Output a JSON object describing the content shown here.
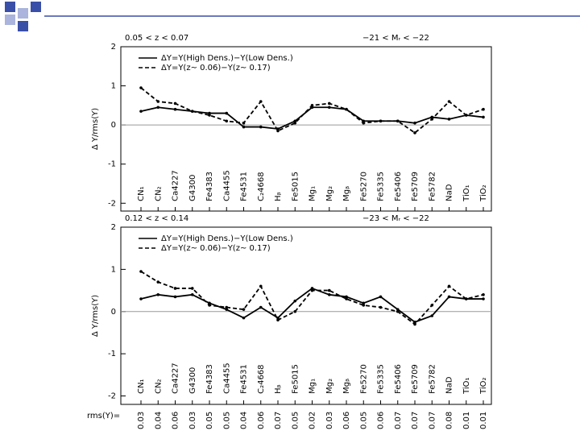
{
  "chart_data": [
    {
      "type": "line",
      "title_left": "0.05 < z < 0.07",
      "title_right": "−21 < Mᵣ < −22",
      "y_label": "Δ Y/rms(Y)",
      "categories": [
        "CN₁",
        "CN₂",
        "Ca4227",
        "G4300",
        "Fe4383",
        "Ca4455",
        "Fe4531",
        "C₂4668",
        "Hᵦ",
        "Fe5015",
        "Mg₁",
        "Mg₂",
        "Mgᵦ",
        "Fe5270",
        "Fe5335",
        "Fe5406",
        "Fe5709",
        "Fe5782",
        "NaD",
        "TiO₁",
        "TiO₂"
      ],
      "series": [
        {
          "name": "ΔY=Y(High Dens.)−Y(Low Dens.)",
          "color": "#000000",
          "dash": "solid",
          "values": [
            0.35,
            0.45,
            0.4,
            0.35,
            0.3,
            0.3,
            -0.05,
            -0.05,
            -0.1,
            0.1,
            0.45,
            0.45,
            0.4,
            0.1,
            0.1,
            0.1,
            0.05,
            0.2,
            0.15,
            0.25,
            0.2
          ]
        },
        {
          "name": "ΔY=Y(z~ 0.06)−Y(z~ 0.17)",
          "color": "#000000",
          "dash": "dashed",
          "values": [
            0.95,
            0.6,
            0.55,
            0.35,
            0.25,
            0.1,
            0.05,
            0.6,
            -0.15,
            0.05,
            0.5,
            0.55,
            0.4,
            0.05,
            0.1,
            0.1,
            -0.2,
            0.15,
            0.6,
            0.25,
            0.4
          ]
        }
      ],
      "ylim": [
        -2.2,
        2
      ],
      "yticks": [
        -2,
        -1,
        0,
        1,
        2
      ]
    },
    {
      "type": "line",
      "title_left": "0.12 < z < 0.14",
      "title_right": "−23 < Mᵣ < −22",
      "y_label": "Δ Y/rms(Y)",
      "categories": [
        "CN₁",
        "CN₂",
        "Ca4227",
        "G4300",
        "Fe4383",
        "Ca4455",
        "Fe4531",
        "C₂4668",
        "Hᵦ",
        "Fe5015",
        "Mg₁",
        "Mg₂",
        "Mgᵦ",
        "Fe5270",
        "Fe5335",
        "Fe5406",
        "Fe5709",
        "Fe5782",
        "NaD",
        "TiO₁",
        "TiO₂"
      ],
      "series": [
        {
          "name": "ΔY=Y(High Dens.)−Y(Low Dens.)",
          "color": "#000000",
          "dash": "solid",
          "values": [
            0.3,
            0.4,
            0.35,
            0.4,
            0.2,
            0.05,
            -0.15,
            0.1,
            -0.15,
            0.25,
            0.55,
            0.4,
            0.35,
            0.2,
            0.35,
            0.05,
            -0.25,
            -0.1,
            0.35,
            0.3,
            0.3
          ]
        },
        {
          "name": "ΔY=Y(z~ 0.06)−Y(z~ 0.17)",
          "color": "#000000",
          "dash": "dashed",
          "values": [
            0.95,
            0.7,
            0.55,
            0.55,
            0.15,
            0.1,
            0.05,
            0.6,
            -0.2,
            0.0,
            0.5,
            0.5,
            0.3,
            0.15,
            0.1,
            0.0,
            -0.3,
            0.15,
            0.6,
            0.3,
            0.4
          ]
        }
      ],
      "ylim": [
        -2.2,
        2
      ],
      "yticks": [
        -2,
        -1,
        0,
        1,
        2
      ],
      "rms_label": "rms(Y)=",
      "rms": [
        0.03,
        0.04,
        0.06,
        0.03,
        0.05,
        0.05,
        0.04,
        0.06,
        0.07,
        0.05,
        0.02,
        0.03,
        0.06,
        0.05,
        0.06,
        0.07,
        0.07,
        0.07,
        0.08,
        0.01,
        0.01
      ]
    }
  ]
}
